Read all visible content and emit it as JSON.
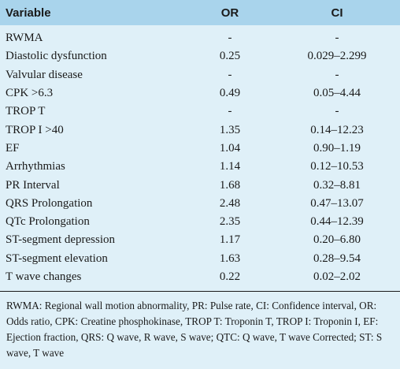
{
  "table": {
    "headers": [
      "Variable",
      "OR",
      "CI"
    ],
    "rows": [
      [
        "RWMA",
        "-",
        "-"
      ],
      [
        "Diastolic dysfunction",
        "0.25",
        "0.029–2.299"
      ],
      [
        "Valvular disease",
        "-",
        "-"
      ],
      [
        "CPK >6.3",
        "0.49",
        "0.05–4.44"
      ],
      [
        "TROP T",
        "-",
        "-"
      ],
      [
        "TROP I >40",
        "1.35",
        "0.14–12.23"
      ],
      [
        "EF",
        "1.04",
        "0.90–1.19"
      ],
      [
        "Arrhythmias",
        "1.14",
        "0.12–10.53"
      ],
      [
        "PR Interval",
        "1.68",
        "0.32–8.81"
      ],
      [
        "QRS Prolongation",
        "2.48",
        "0.47–13.07"
      ],
      [
        "QTc Prolongation",
        "2.35",
        "0.44–12.39"
      ],
      [
        "ST-segment depression",
        "1.17",
        "0.20–6.80"
      ],
      [
        "ST-segment elevation",
        "1.63",
        "0.28–9.54"
      ],
      [
        "T wave changes",
        "0.22",
        "0.02–2.02"
      ]
    ],
    "footnote": "RWMA: Regional wall motion abnormality, PR: Pulse rate, CI: Confidence interval, OR: Odds ratio, CPK: Creatine phosphokinase, TROP T: Troponin T, TROP I: Troponin I, EF: Ejection fraction, QRS: Q wave, R wave, S wave; QTC: Q wave, T wave Corrected; ST: S wave, T wave"
  }
}
